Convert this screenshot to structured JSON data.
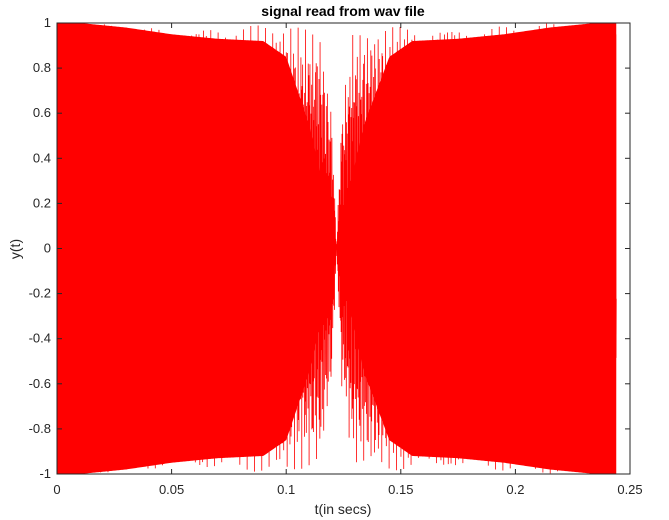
{
  "chart_data": {
    "type": "line",
    "title": "signal read from wav file",
    "xlabel": "t(in secs)",
    "ylabel": "y(t)",
    "xlim": [
      0,
      0.25
    ],
    "ylim": [
      -1,
      1
    ],
    "x_ticks": [
      0,
      0.05,
      0.1,
      0.15,
      0.2,
      0.25
    ],
    "x_tick_labels": [
      "0",
      "0.05",
      "0.1",
      "0.15",
      "0.2",
      "0.25"
    ],
    "y_ticks": [
      -1,
      -0.8,
      -0.6,
      -0.4,
      -0.2,
      0,
      0.2,
      0.4,
      0.6,
      0.8,
      1
    ],
    "y_tick_labels": [
      "-1",
      "-0.8",
      "-0.6",
      "-0.4",
      "-0.2",
      "0",
      "0.2",
      "0.4",
      "0.6",
      "0.8",
      "1"
    ],
    "grid": false,
    "legend": "none",
    "series": [
      {
        "color": "#ff0000",
        "x_start": 0,
        "x_end": 0.244,
        "amplitude_min": -1,
        "amplitude_max": 1,
        "zero_crossing_node_x": 0.122,
        "envelope": [
          {
            "x": 0.0,
            "y": 1.0
          },
          {
            "x": 0.01,
            "y": 1.0
          },
          {
            "x": 0.03,
            "y": 0.98
          },
          {
            "x": 0.05,
            "y": 0.95
          },
          {
            "x": 0.07,
            "y": 0.93
          },
          {
            "x": 0.09,
            "y": 0.92
          },
          {
            "x": 0.1,
            "y": 0.85
          },
          {
            "x": 0.11,
            "y": 0.55
          },
          {
            "x": 0.118,
            "y": 0.2
          },
          {
            "x": 0.122,
            "y": 0.0
          },
          {
            "x": 0.126,
            "y": 0.2
          },
          {
            "x": 0.134,
            "y": 0.55
          },
          {
            "x": 0.145,
            "y": 0.85
          },
          {
            "x": 0.155,
            "y": 0.92
          },
          {
            "x": 0.175,
            "y": 0.93
          },
          {
            "x": 0.195,
            "y": 0.95
          },
          {
            "x": 0.215,
            "y": 0.98
          },
          {
            "x": 0.235,
            "y": 1.0
          },
          {
            "x": 0.244,
            "y": 1.0
          }
        ],
        "outer_envelope": [
          {
            "x": 0.0,
            "y": 1.0
          },
          {
            "x": 0.1,
            "y": 1.0
          },
          {
            "x": 0.115,
            "y": 0.95
          },
          {
            "x": 0.12,
            "y": 0.6
          },
          {
            "x": 0.122,
            "y": 0.0
          },
          {
            "x": 0.124,
            "y": 0.6
          },
          {
            "x": 0.129,
            "y": 0.95
          },
          {
            "x": 0.144,
            "y": 1.0
          },
          {
            "x": 0.244,
            "y": 1.0
          }
        ]
      }
    ]
  }
}
